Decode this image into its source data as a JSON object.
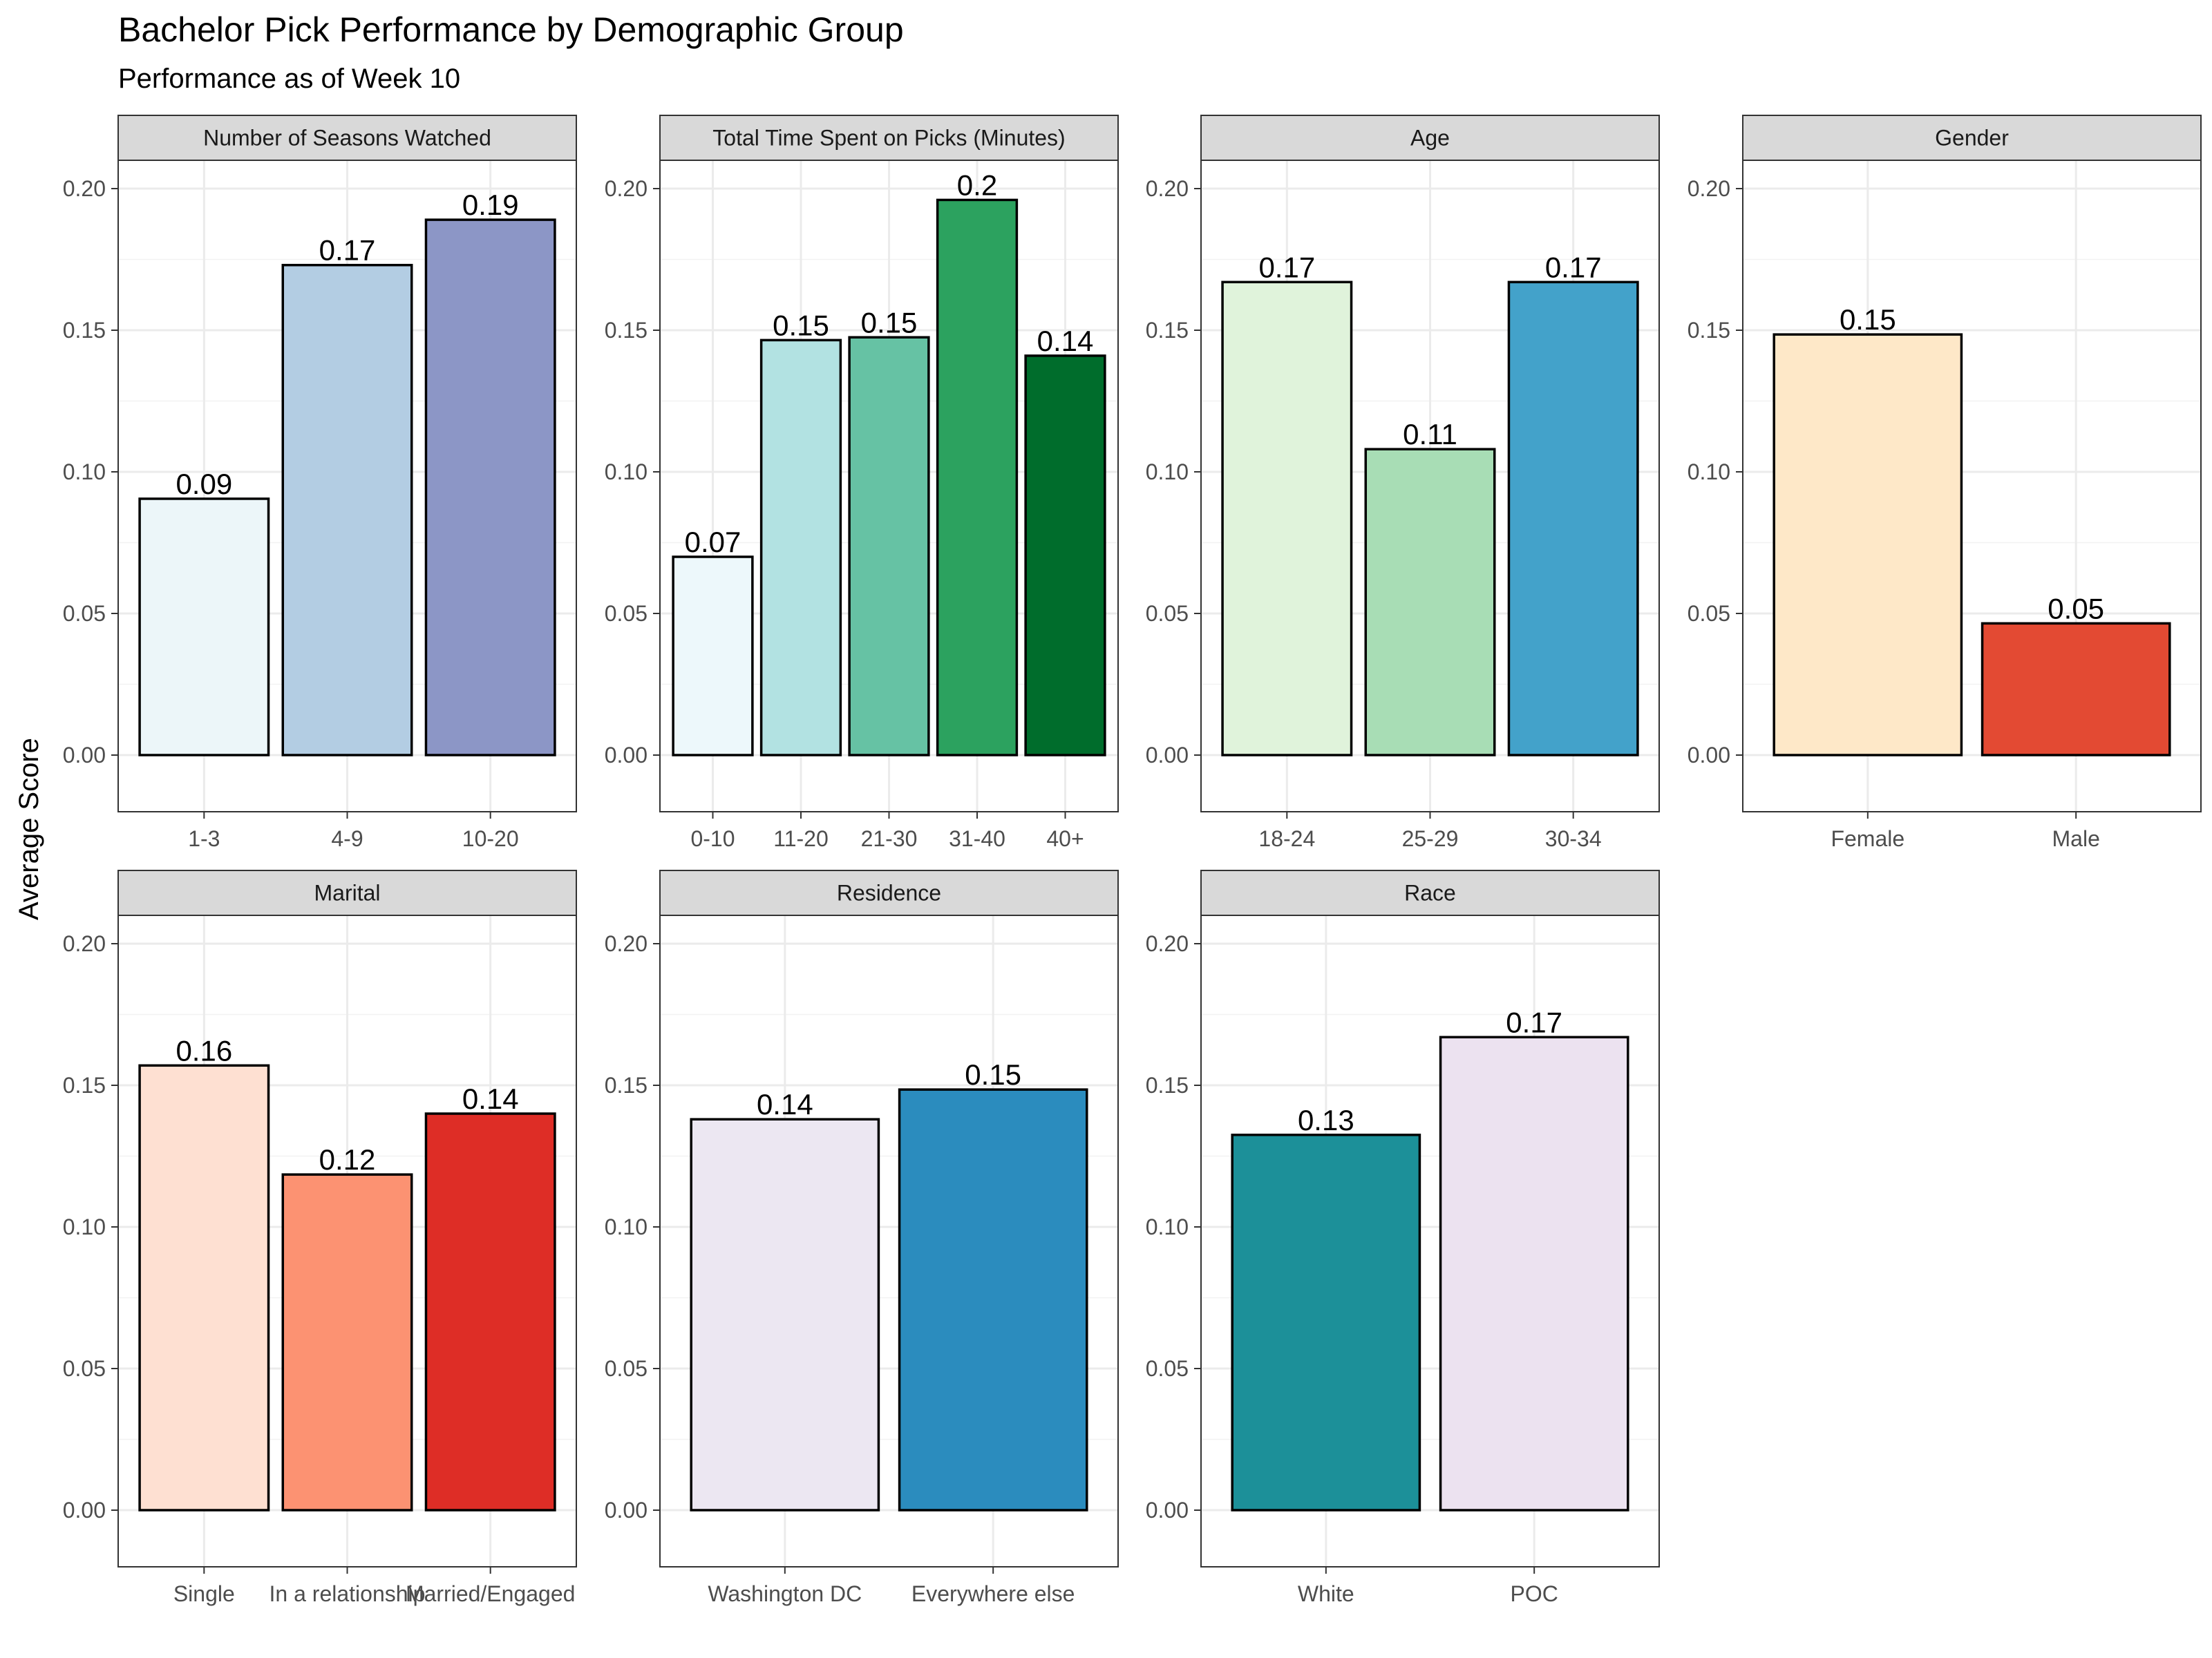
{
  "chart_data": {
    "type": "bar",
    "title": "Bachelor Pick Performance by Demographic Group",
    "subtitle": "Performance as of Week 10",
    "ylabel": "Average Score",
    "xlabel": "",
    "ylim": [
      -0.02,
      0.21
    ],
    "yticks": [
      0.0,
      0.05,
      0.1,
      0.15,
      0.2
    ],
    "grid": true,
    "legend": "none",
    "panels": [
      {
        "name": "Number of Seasons Watched",
        "categories": [
          "1-3",
          "4-9",
          "10-20"
        ],
        "values": [
          0.0905,
          0.173,
          0.189
        ],
        "labels": [
          "0.09",
          "0.17",
          "0.19"
        ],
        "colors": [
          "#ecf6f9",
          "#b3cde3",
          "#8c96c6"
        ]
      },
      {
        "name": "Total Time Spent on Picks (Minutes)",
        "categories": [
          "0-10",
          "11-20",
          "21-30",
          "31-40",
          "40+"
        ],
        "values": [
          0.07,
          0.1465,
          0.1475,
          0.196,
          0.141
        ],
        "labels": [
          "0.07",
          "0.15",
          "0.15",
          "0.2",
          "0.14"
        ],
        "colors": [
          "#edf8fb",
          "#b2e2e2",
          "#66c2a4",
          "#2ca25f",
          "#006d2c"
        ]
      },
      {
        "name": "Age",
        "categories": [
          "18-24",
          "25-29",
          "30-34"
        ],
        "values": [
          0.167,
          0.108,
          0.167
        ],
        "labels": [
          "0.17",
          "0.11",
          "0.17"
        ],
        "colors": [
          "#e0f3db",
          "#a8ddb5",
          "#43a2ca"
        ]
      },
      {
        "name": "Gender",
        "categories": [
          "Female",
          "Male"
        ],
        "values": [
          0.1485,
          0.0465
        ],
        "labels": [
          "0.15",
          "0.05"
        ],
        "colors": [
          "#fee8c8",
          "#e34a33"
        ]
      },
      {
        "name": "Marital",
        "categories": [
          "Single",
          "In a relationship",
          "Married/Engaged"
        ],
        "values": [
          0.157,
          0.1185,
          0.14
        ],
        "labels": [
          "0.16",
          "0.12",
          "0.14"
        ],
        "colors": [
          "#fee0d2",
          "#fc9272",
          "#de2d26"
        ]
      },
      {
        "name": "Residence",
        "categories": [
          "Washington DC",
          "Everywhere else"
        ],
        "values": [
          0.138,
          0.1485
        ],
        "labels": [
          "0.14",
          "0.15"
        ],
        "colors": [
          "#ece7f2",
          "#2b8cbe"
        ]
      },
      {
        "name": "Race",
        "categories": [
          "White",
          "POC"
        ],
        "values": [
          0.1325,
          0.167
        ],
        "labels": [
          "0.13",
          "0.17"
        ],
        "colors": [
          "#1c9099",
          "#ece2f0"
        ]
      }
    ]
  }
}
